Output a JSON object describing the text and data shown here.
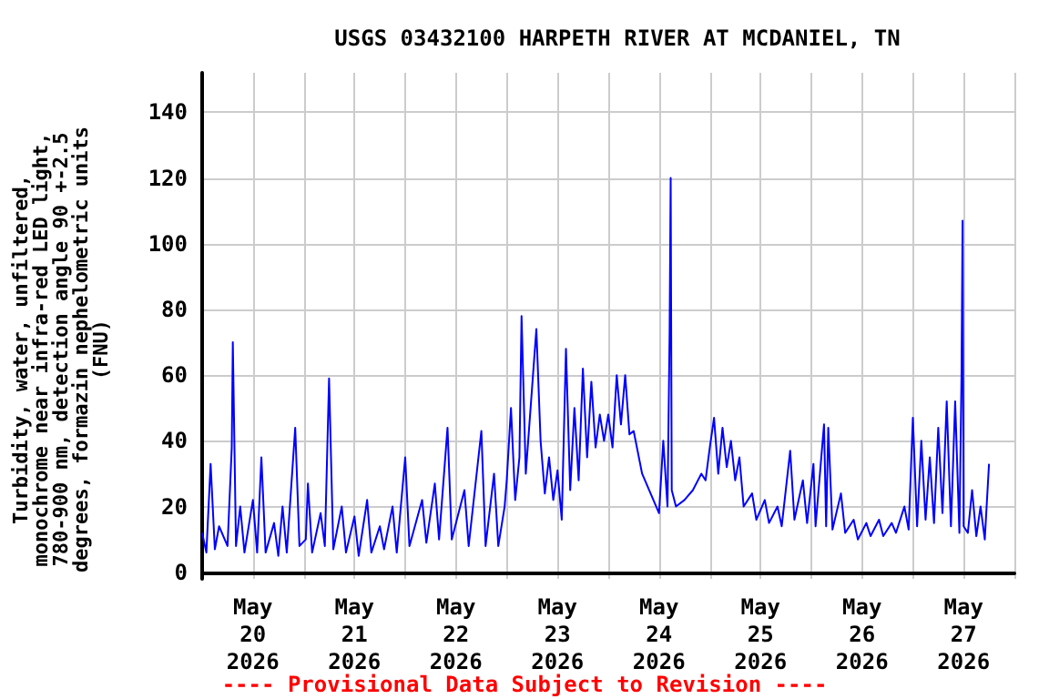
{
  "chart_data": {
    "type": "line",
    "title": "USGS 03432100 HARPETH RIVER AT MCDANIEL, TN",
    "ylabel": "Turbidity, water, unfiltered,\nmonochrome near infra-red LED light,\n780-900 nm, detection angle 90 +-2.5\ndegrees, formazin nephelometric units\n(FNU)",
    "annotations": [
      "---- Provisional Data Subject to Revision ----"
    ],
    "xlim": [
      "2026-05-20T00:00",
      "2026-05-28T00:00"
    ],
    "xticks": [
      {
        "value": "2026-05-20T00:00",
        "label": null
      },
      {
        "value": "2026-05-20T12:00",
        "label": "May\n20\n2026"
      },
      {
        "value": "2026-05-21T00:00",
        "label": null
      },
      {
        "value": "2026-05-21T12:00",
        "label": "May\n21\n2026"
      },
      {
        "value": "2026-05-22T00:00",
        "label": null
      },
      {
        "value": "2026-05-22T12:00",
        "label": "May\n22\n2026"
      },
      {
        "value": "2026-05-23T00:00",
        "label": null
      },
      {
        "value": "2026-05-23T12:00",
        "label": "May\n23\n2026"
      },
      {
        "value": "2026-05-24T00:00",
        "label": null
      },
      {
        "value": "2026-05-24T12:00",
        "label": "May\n24\n2026"
      },
      {
        "value": "2026-05-25T00:00",
        "label": null
      },
      {
        "value": "2026-05-25T12:00",
        "label": "May\n25\n2026"
      },
      {
        "value": "2026-05-26T00:00",
        "label": null
      },
      {
        "value": "2026-05-26T12:00",
        "label": "May\n26\n2026"
      },
      {
        "value": "2026-05-27T00:00",
        "label": null
      },
      {
        "value": "2026-05-27T12:00",
        "label": "May\n27\n2026"
      },
      {
        "value": "2026-05-28T00:00",
        "label": null
      }
    ],
    "ylim": [
      -2,
      152
    ],
    "yticks": [
      0,
      20,
      40,
      60,
      80,
      100,
      120,
      140
    ],
    "grid": true,
    "line_style": "solid",
    "marker": "none",
    "x": [
      "2026-05-20T00:00",
      "2026-05-20T01:00",
      "2026-05-20T02:00",
      "2026-05-20T03:00",
      "2026-05-20T04:00",
      "2026-05-20T06:00",
      "2026-05-20T07:00",
      "2026-05-20T07:15",
      "2026-05-20T08:00",
      "2026-05-20T09:00",
      "2026-05-20T10:00",
      "2026-05-20T12:00",
      "2026-05-20T13:00",
      "2026-05-20T14:00",
      "2026-05-20T15:00",
      "2026-05-20T17:00",
      "2026-05-20T18:00",
      "2026-05-20T19:00",
      "2026-05-20T20:00",
      "2026-05-20T22:00",
      "2026-05-20T23:00",
      "2026-05-21T00:30",
      "2026-05-21T01:00",
      "2026-05-21T02:00",
      "2026-05-21T04:00",
      "2026-05-21T05:00",
      "2026-05-21T06:00",
      "2026-05-21T07:00",
      "2026-05-21T09:00",
      "2026-05-21T10:00",
      "2026-05-21T12:00",
      "2026-05-21T13:00",
      "2026-05-21T15:00",
      "2026-05-21T16:00",
      "2026-05-21T18:00",
      "2026-05-21T19:00",
      "2026-05-21T21:00",
      "2026-05-21T22:00",
      "2026-05-22T00:00",
      "2026-05-22T01:00",
      "2026-05-22T04:00",
      "2026-05-22T05:00",
      "2026-05-22T07:00",
      "2026-05-22T08:00",
      "2026-05-22T10:00",
      "2026-05-22T11:00",
      "2026-05-22T14:00",
      "2026-05-22T15:00",
      "2026-05-22T18:00",
      "2026-05-22T19:00",
      "2026-05-22T21:00",
      "2026-05-22T22:00",
      "2026-05-22T23:30",
      "2026-05-23T00:00",
      "2026-05-23T01:00",
      "2026-05-23T02:00",
      "2026-05-23T03:00",
      "2026-05-23T03:30",
      "2026-05-23T04:30",
      "2026-05-23T07:00",
      "2026-05-23T08:00",
      "2026-05-23T09:00",
      "2026-05-23T10:00",
      "2026-05-23T11:00",
      "2026-05-23T12:00",
      "2026-05-23T13:00",
      "2026-05-23T14:00",
      "2026-05-23T15:00",
      "2026-05-23T16:00",
      "2026-05-23T17:00",
      "2026-05-23T18:00",
      "2026-05-23T19:00",
      "2026-05-23T20:00",
      "2026-05-23T21:00",
      "2026-05-23T22:00",
      "2026-05-23T23:00",
      "2026-05-24T00:00",
      "2026-05-24T01:00",
      "2026-05-24T02:00",
      "2026-05-24T03:00",
      "2026-05-24T04:00",
      "2026-05-24T05:00",
      "2026-05-24T06:00",
      "2026-05-24T08:00",
      "2026-05-24T10:00",
      "2026-05-24T12:00",
      "2026-05-24T13:00",
      "2026-05-24T14:00",
      "2026-05-24T14:30",
      "2026-05-24T14:45",
      "2026-05-24T15:00",
      "2026-05-24T16:00",
      "2026-05-24T18:00",
      "2026-05-24T20:00",
      "2026-05-24T22:00",
      "2026-05-24T23:00",
      "2026-05-25T00:00",
      "2026-05-25T01:00",
      "2026-05-25T02:00",
      "2026-05-25T03:00",
      "2026-05-25T04:00",
      "2026-05-25T05:00",
      "2026-05-25T06:00",
      "2026-05-25T07:00",
      "2026-05-25T08:00",
      "2026-05-25T10:00",
      "2026-05-25T11:00",
      "2026-05-25T13:00",
      "2026-05-25T14:00",
      "2026-05-25T16:00",
      "2026-05-25T17:00",
      "2026-05-25T19:00",
      "2026-05-25T20:00",
      "2026-05-25T22:00",
      "2026-05-25T23:00",
      "2026-05-26T00:30",
      "2026-05-26T01:00",
      "2026-05-26T03:00",
      "2026-05-26T03:30",
      "2026-05-26T04:00",
      "2026-05-26T05:00",
      "2026-05-26T07:00",
      "2026-05-26T08:00",
      "2026-05-26T10:00",
      "2026-05-26T11:00",
      "2026-05-26T13:00",
      "2026-05-26T14:00",
      "2026-05-26T16:00",
      "2026-05-26T17:00",
      "2026-05-26T19:00",
      "2026-05-26T20:00",
      "2026-05-26T22:00",
      "2026-05-26T23:00",
      "2026-05-27T00:00",
      "2026-05-27T01:00",
      "2026-05-27T02:00",
      "2026-05-27T03:00",
      "2026-05-27T04:00",
      "2026-05-27T05:00",
      "2026-05-27T06:00",
      "2026-05-27T07:00",
      "2026-05-27T08:00",
      "2026-05-27T09:00",
      "2026-05-27T10:00",
      "2026-05-27T11:00",
      "2026-05-27T11:30",
      "2026-05-27T11:45",
      "2026-05-27T12:00",
      "2026-05-27T13:00",
      "2026-05-27T14:00",
      "2026-05-27T15:00",
      "2026-05-27T16:00",
      "2026-05-27T17:00",
      "2026-05-27T18:00"
    ],
    "series": [
      {
        "color": "#0000ff",
        "values": [
          12,
          6,
          33,
          7,
          14,
          8,
          38,
          70,
          8,
          20,
          6,
          22,
          6,
          35,
          6,
          15,
          5,
          20,
          6,
          44,
          8,
          10,
          27,
          6,
          18,
          8,
          59,
          7,
          20,
          6,
          17,
          5,
          22,
          6,
          14,
          7,
          20,
          6,
          35,
          8,
          22,
          9,
          27,
          10,
          44,
          10,
          25,
          8,
          43,
          8,
          30,
          8,
          20,
          28,
          50,
          22,
          35,
          78,
          30,
          74,
          40,
          24,
          35,
          22,
          31,
          16,
          68,
          25,
          50,
          28,
          62,
          35,
          58,
          38,
          48,
          40,
          48,
          38,
          60,
          45,
          60,
          42,
          43,
          30,
          24,
          18,
          40,
          20,
          73,
          120,
          25,
          20,
          22,
          25,
          30,
          28,
          38,
          47,
          30,
          44,
          32,
          40,
          28,
          35,
          20,
          24,
          16,
          22,
          15,
          20,
          14,
          37,
          16,
          28,
          15,
          33,
          14,
          45,
          14,
          44,
          13,
          24,
          12,
          16,
          10,
          15,
          11,
          16,
          11,
          15,
          12,
          20,
          13,
          47,
          14,
          40,
          16,
          35,
          15,
          44,
          18,
          52,
          14,
          52,
          12,
          60,
          107,
          14,
          12,
          25,
          11,
          20,
          10,
          33
        ]
      }
    ]
  }
}
